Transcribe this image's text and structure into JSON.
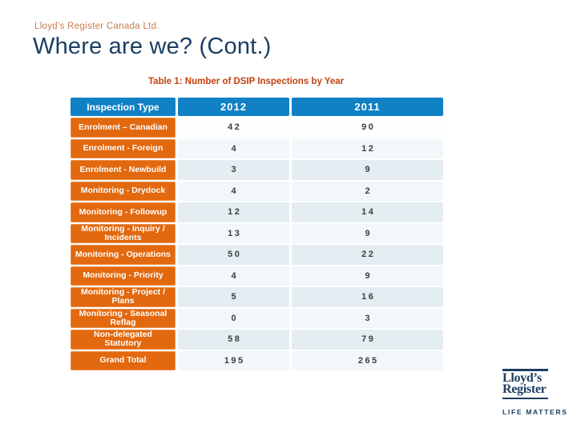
{
  "slide": {
    "eyebrow": "Lloyd’s Register Canada Ltd.",
    "title": "Where are we? (Cont.)",
    "caption": "Table 1: Number of DSIP Inspections by Year"
  },
  "table": {
    "headers": [
      "Inspection Type",
      "2012",
      "2011"
    ],
    "rows": [
      {
        "label": "Enrolment – Canadian",
        "y2012": "42",
        "y2011": "90"
      },
      {
        "label": "Enrolment - Foreign",
        "y2012": "4",
        "y2011": "12"
      },
      {
        "label": "Enrolment - Newbuild",
        "y2012": "3",
        "y2011": "9"
      },
      {
        "label": "Monitoring - Drydock",
        "y2012": "4",
        "y2011": "2"
      },
      {
        "label": "Monitoring - Followup",
        "y2012": "12",
        "y2011": "14"
      },
      {
        "label": "Monitoring - Inquiry /\nIncidents",
        "y2012": "13",
        "y2011": "9"
      },
      {
        "label": "Monitoring - Operations",
        "y2012": "50",
        "y2011": "22"
      },
      {
        "label": "Monitoring - Priority",
        "y2012": "4",
        "y2011": "9"
      },
      {
        "label": "Monitoring - Project /\nPlans",
        "y2012": "5",
        "y2011": "16"
      },
      {
        "label": "Monitoring - Seasonal\nReflag",
        "y2012": "0",
        "y2011": "3"
      },
      {
        "label": "Non-delegated\nStatutory",
        "y2012": "58",
        "y2011": "79"
      },
      {
        "label": "Grand Total",
        "y2012": "195",
        "y2011": "265"
      }
    ]
  },
  "logo": {
    "line1": "Lloyd’s",
    "line2": "Register",
    "tagline": "LIFE MATTERS"
  },
  "colors": {
    "header_blue": "#1181c6",
    "row_label_orange": "#e2690f",
    "title_navy": "#1b3f61",
    "eyebrow_orange": "#c97a52",
    "caption_red": "#c2410e",
    "row_alt_light": "#f2f8fa",
    "row_alt_mid": "#e4eef2",
    "logo_navy": "#1d3c60"
  }
}
